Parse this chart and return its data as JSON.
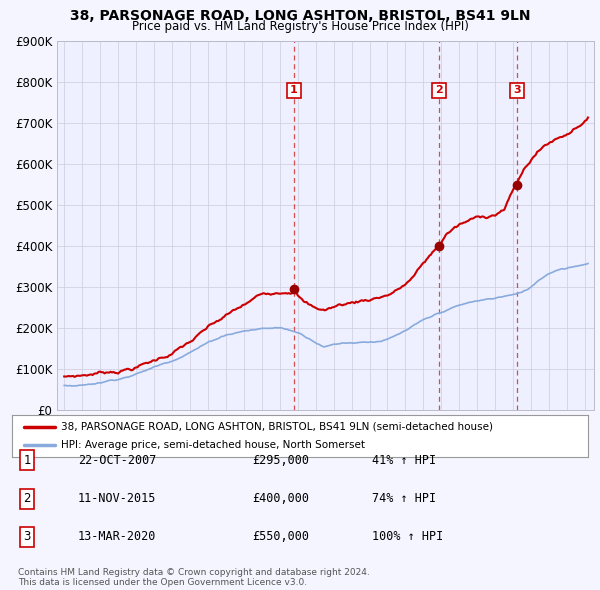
{
  "title": "38, PARSONAGE ROAD, LONG ASHTON, BRISTOL, BS41 9LN",
  "subtitle": "Price paid vs. HM Land Registry's House Price Index (HPI)",
  "ylim": [
    0,
    900000
  ],
  "yticks": [
    0,
    100000,
    200000,
    300000,
    400000,
    500000,
    600000,
    700000,
    800000,
    900000
  ],
  "ytick_labels": [
    "£0",
    "£100K",
    "£200K",
    "£300K",
    "£400K",
    "£500K",
    "£600K",
    "£700K",
    "£800K",
    "£900K"
  ],
  "sale_prices": [
    295000,
    400000,
    550000
  ],
  "sale_labels": [
    "1",
    "2",
    "3"
  ],
  "sale_pct": [
    "41%",
    "74%",
    "100%"
  ],
  "sale_display_dates": [
    "22-OCT-2007",
    "11-NOV-2015",
    "13-MAR-2020"
  ],
  "sale_prices_str": [
    "£295,000",
    "£400,000",
    "£550,000"
  ],
  "line_color_property": "#cc0000",
  "line_color_hpi": "#88aadd",
  "vline_color": "#cc3333",
  "background_color": "#f5f5ff",
  "plot_bg_color": "#eef0ff",
  "legend_line1": "38, PARSONAGE ROAD, LONG ASHTON, BRISTOL, BS41 9LN (semi-detached house)",
  "legend_line2": "HPI: Average price, semi-detached house, North Somerset",
  "footer1": "Contains HM Land Registry data © Crown copyright and database right 2024.",
  "footer2": "This data is licensed under the Open Government Licence v3.0.",
  "x_start_year": 1995,
  "x_end_year": 2024,
  "prop_x": [
    1995.0,
    1996.0,
    1997.0,
    1998.0,
    1999.0,
    2000.0,
    2001.0,
    2002.0,
    2003.0,
    2004.0,
    2005.0,
    2006.0,
    2007.83,
    2008.3,
    2008.9,
    2009.5,
    2010.0,
    2010.5,
    2011.0,
    2011.5,
    2012.0,
    2012.5,
    2013.0,
    2013.5,
    2014.0,
    2014.5,
    2015.0,
    2015.85,
    2016.3,
    2016.6,
    2017.0,
    2017.5,
    2018.0,
    2018.5,
    2019.0,
    2019.5,
    2020.2,
    2020.7,
    2021.2,
    2021.7,
    2022.2,
    2022.7,
    2023.2,
    2023.7,
    2024.2
  ],
  "prop_y": [
    82000,
    86000,
    93000,
    100000,
    110000,
    125000,
    145000,
    170000,
    200000,
    225000,
    248000,
    272000,
    295000,
    268000,
    250000,
    245000,
    252000,
    258000,
    262000,
    267000,
    272000,
    278000,
    285000,
    295000,
    310000,
    330000,
    358000,
    400000,
    430000,
    440000,
    450000,
    458000,
    465000,
    470000,
    478000,
    490000,
    550000,
    590000,
    620000,
    640000,
    655000,
    665000,
    680000,
    700000,
    715000
  ],
  "hpi_x": [
    1995.0,
    1996.0,
    1997.0,
    1998.0,
    1999.0,
    2000.0,
    2001.0,
    2002.0,
    2003.0,
    2004.0,
    2005.0,
    2006.0,
    2007.0,
    2008.0,
    2008.8,
    2009.5,
    2010.0,
    2010.5,
    2011.0,
    2011.5,
    2012.0,
    2012.5,
    2013.0,
    2013.5,
    2014.0,
    2014.5,
    2015.0,
    2015.5,
    2016.0,
    2016.5,
    2017.0,
    2017.5,
    2018.0,
    2018.5,
    2019.0,
    2019.5,
    2020.0,
    2020.5,
    2021.0,
    2021.5,
    2022.0,
    2022.5,
    2023.0,
    2023.5,
    2024.2
  ],
  "hpi_y": [
    60000,
    63000,
    70000,
    80000,
    92000,
    108000,
    125000,
    148000,
    170000,
    190000,
    200000,
    205000,
    207000,
    195000,
    178000,
    163000,
    168000,
    172000,
    173000,
    175000,
    176000,
    178000,
    182000,
    190000,
    200000,
    212000,
    222000,
    230000,
    240000,
    248000,
    255000,
    260000,
    264000,
    267000,
    270000,
    275000,
    278000,
    282000,
    295000,
    315000,
    330000,
    340000,
    345000,
    350000,
    358000
  ]
}
